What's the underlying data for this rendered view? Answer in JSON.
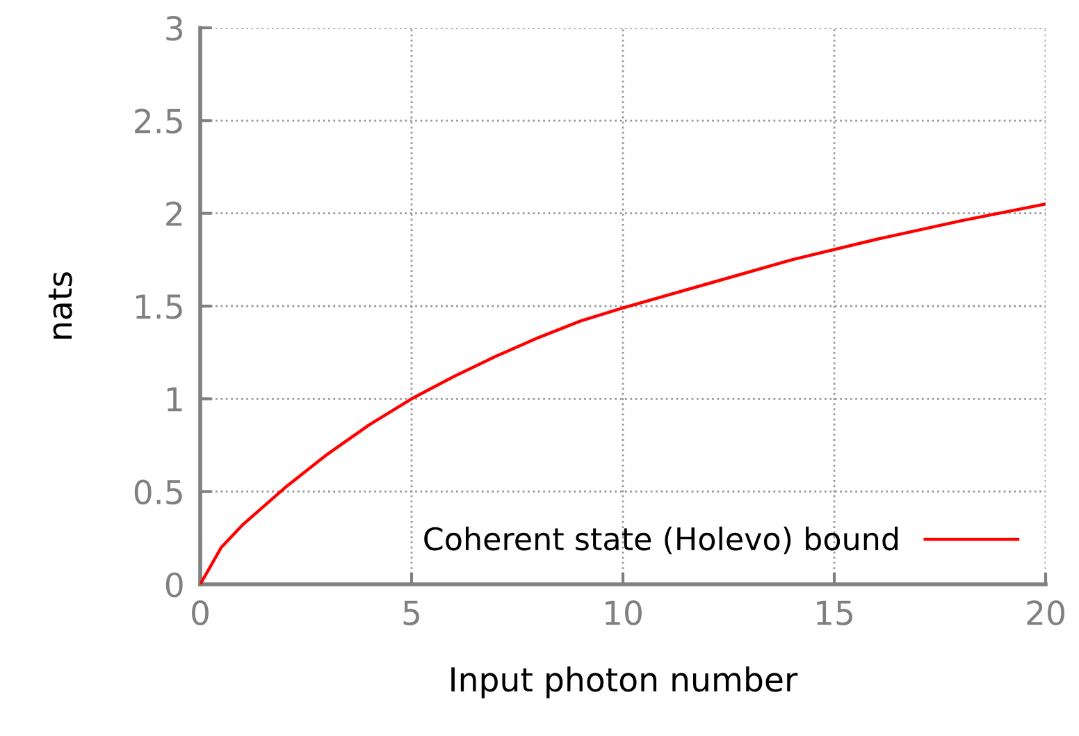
{
  "chart_data": {
    "type": "line",
    "xlabel": "Input photon number",
    "ylabel": "nats",
    "x": [
      0,
      0.5,
      1,
      2,
      3,
      4,
      5,
      6,
      7,
      8,
      9,
      10,
      12,
      14,
      16,
      18,
      20
    ],
    "series": [
      {
        "name": "Coherent state (Holevo) bound",
        "color": "#ff0000",
        "values": [
          0,
          0.2,
          0.32,
          0.52,
          0.7,
          0.86,
          1.0,
          1.12,
          1.23,
          1.33,
          1.42,
          1.49,
          1.62,
          1.75,
          1.86,
          1.96,
          2.05
        ]
      }
    ],
    "xlim": [
      0,
      20
    ],
    "ylim": [
      0,
      3
    ],
    "xticks": [
      0,
      5,
      10,
      15,
      20
    ],
    "yticks": [
      0,
      0.5,
      1,
      1.5,
      2,
      2.5,
      3
    ],
    "grid": true,
    "legend": "bottom right",
    "line_style": "solid",
    "marker": "none"
  }
}
